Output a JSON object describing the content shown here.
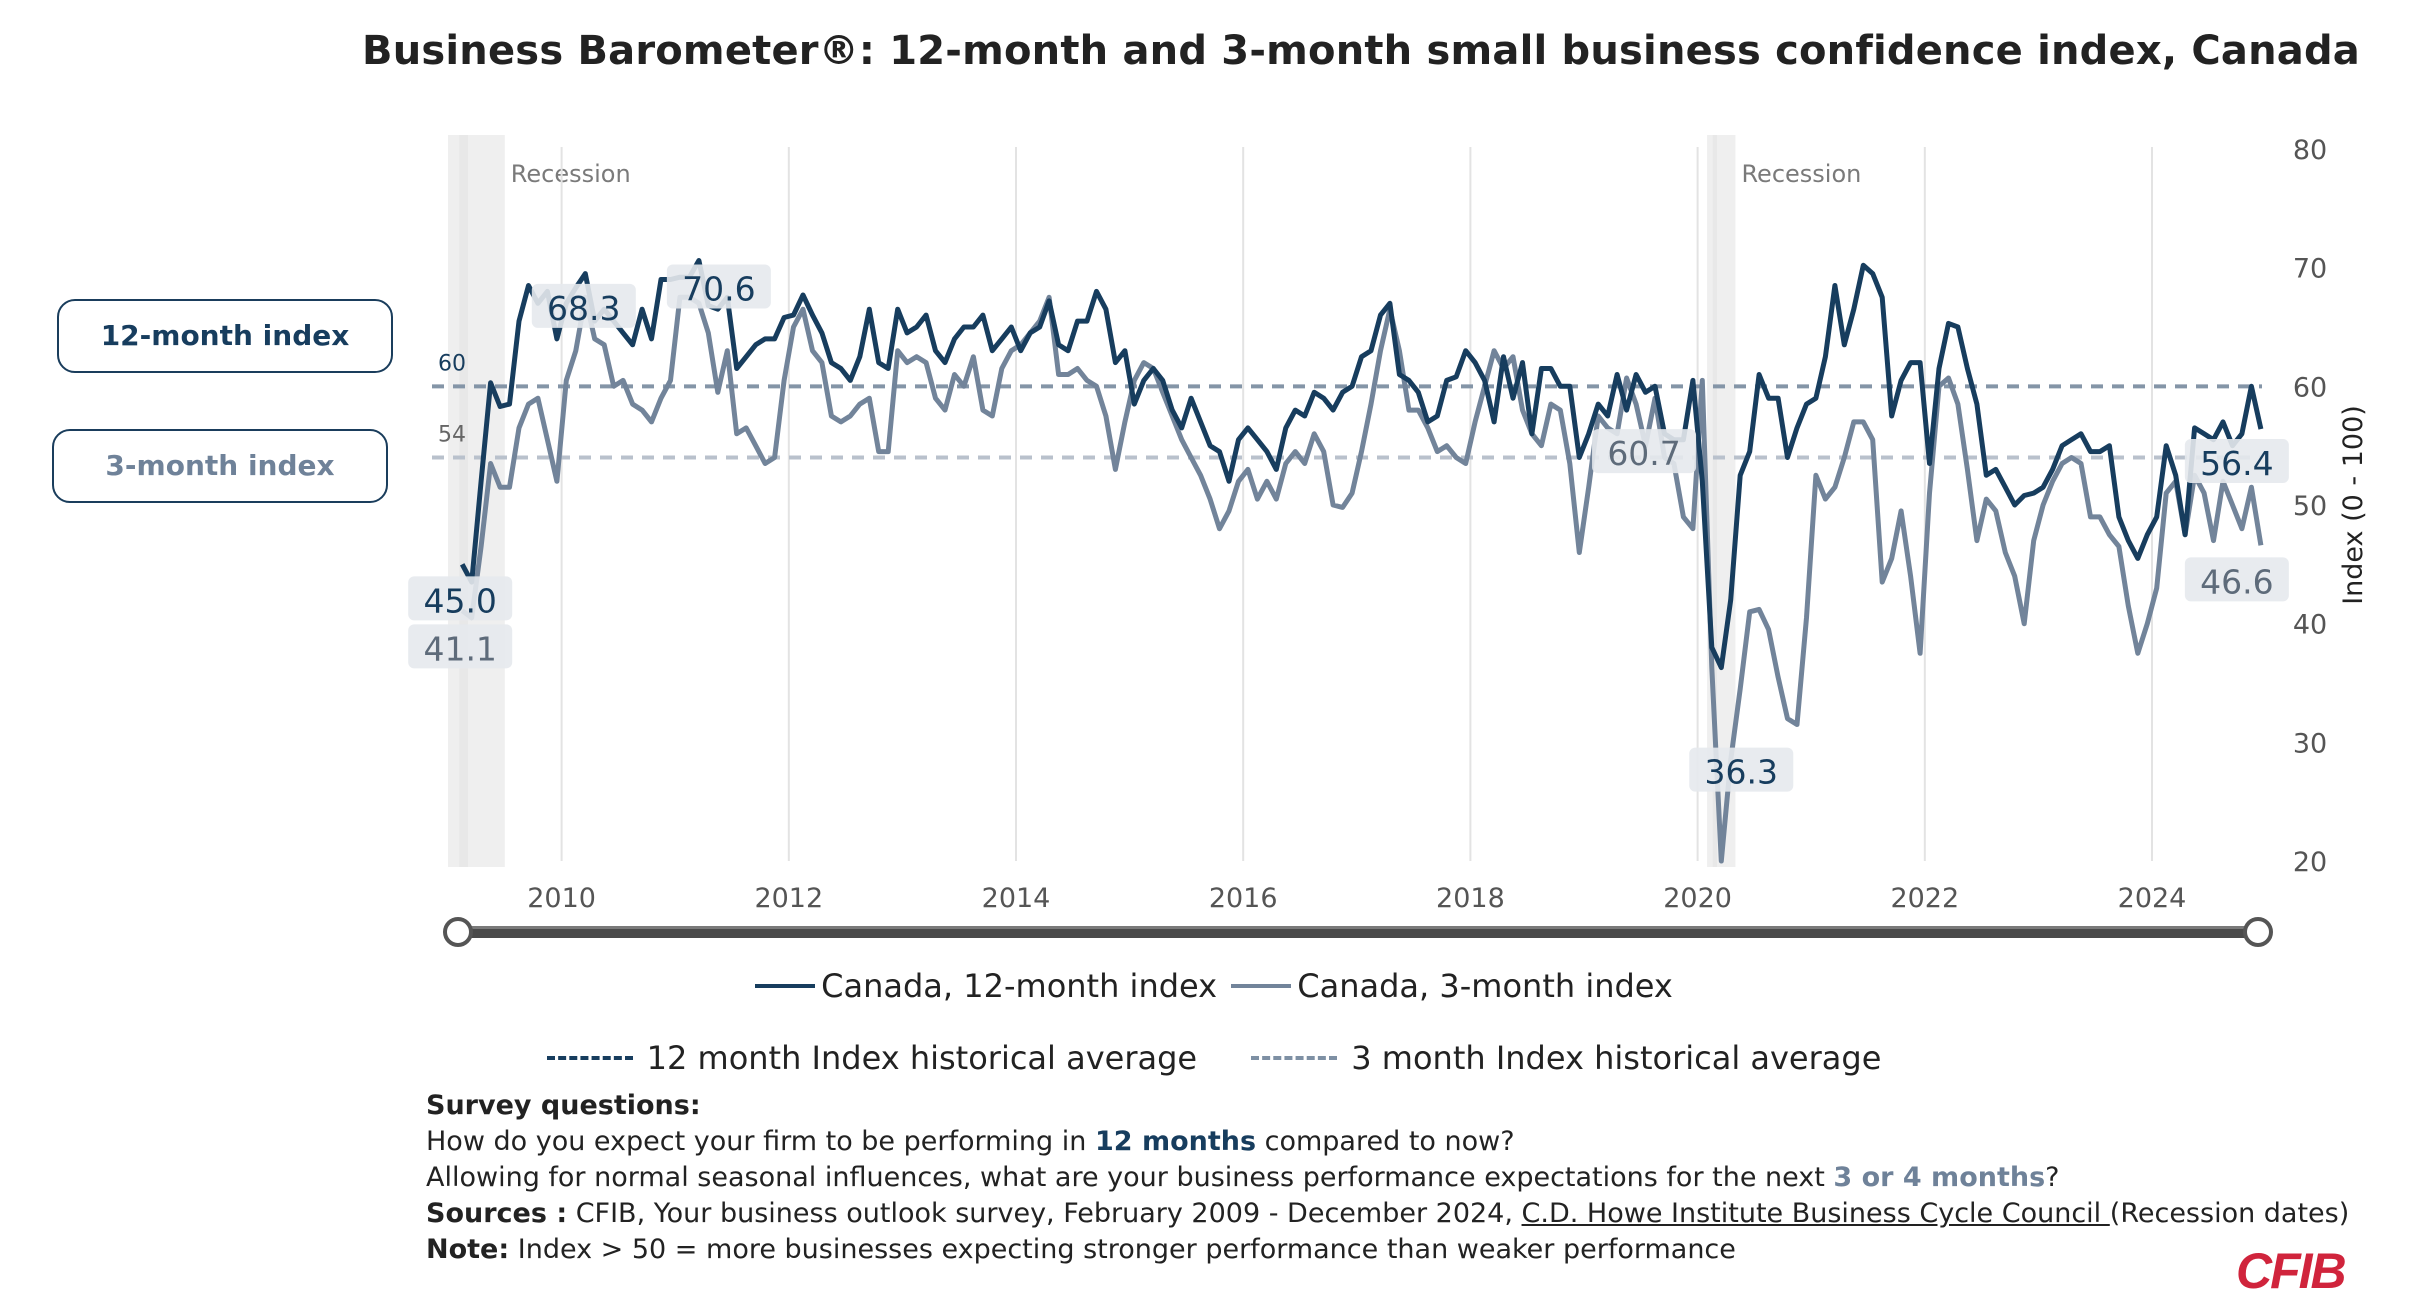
{
  "title": "Business Barometer®: 12-month and 3-month small business confidence index, Canada",
  "toggles": {
    "twelve_month": "12-month index",
    "three_month": "3-month index"
  },
  "colors": {
    "series_12": "#173d5e",
    "series_3": "#72849a",
    "avg_12": "#8495a7",
    "avg_3": "#b9c1cc",
    "recession": "#efefef",
    "label_bg": "#e6e9ed",
    "brand": "#d0243c"
  },
  "chart_data": {
    "type": "line",
    "title": "Business Barometer®: 12-month and 3-month small business confidence index, Canada",
    "xlabel": "",
    "ylabel": "Index (0 - 100)",
    "ylim": [
      20,
      80
    ],
    "yticks": [
      "20",
      "30",
      "40",
      "50",
      "60",
      "70",
      "80"
    ],
    "xticks": [
      "2010",
      "2012",
      "2014",
      "2016",
      "2018",
      "2020",
      "2022",
      "2024"
    ],
    "x_start": "2009-02",
    "x_end": "2024-12",
    "frequency": "monthly",
    "grid": "vertical",
    "legend_position": "bottom",
    "series": [
      {
        "name": "Canada, 12-month index",
        "values": [
          45.0,
          43.5,
          52.0,
          60.3,
          58.3,
          58.5,
          65.5,
          68.5,
          67.0,
          68.0,
          64.0,
          67.0,
          68.3,
          69.5,
          65.5,
          66.5,
          65.5,
          64.5,
          63.5,
          66.5,
          64.0,
          69.0,
          69.0,
          69.2,
          69.2,
          70.6,
          66.8,
          66.5,
          67.5,
          61.5,
          62.5,
          63.5,
          64.0,
          64.0,
          65.8,
          66.0,
          67.7,
          66.0,
          64.5,
          62.0,
          61.5,
          60.5,
          62.5,
          66.5,
          62.0,
          61.5,
          66.5,
          64.5,
          65.0,
          66.0,
          63.0,
          62.0,
          64.0,
          65.0,
          65.0,
          66.0,
          63.0,
          64.0,
          65.0,
          63.0,
          64.5,
          65.0,
          67.2,
          63.5,
          63.0,
          65.5,
          65.5,
          68.0,
          66.5,
          62.0,
          63.0,
          58.5,
          60.5,
          61.5,
          60.5,
          58.0,
          56.5,
          59.0,
          57.0,
          55.0,
          54.5,
          52.0,
          55.5,
          56.5,
          55.5,
          54.5,
          53.0,
          56.5,
          58.0,
          57.5,
          59.5,
          59.0,
          58.0,
          59.5,
          60.0,
          62.5,
          63.0,
          66.0,
          67.0,
          61.0,
          60.5,
          59.5,
          57.0,
          57.5,
          60.5,
          60.8,
          63.0,
          62.0,
          60.5,
          57.0,
          62.5,
          59.0,
          62.0,
          56.0,
          61.5,
          61.5,
          60.0,
          60.0,
          54.0,
          56.0,
          58.5,
          57.5,
          61.0,
          58.0,
          61.0,
          59.5,
          60.0,
          56.0,
          55.5,
          55.5,
          60.5,
          52.0,
          38.0,
          36.3,
          42.0,
          52.5,
          54.5,
          61.0,
          59.0,
          59.0,
          54.0,
          56.5,
          58.5,
          59.0,
          62.5,
          68.5,
          63.5,
          66.5,
          70.2,
          69.5,
          67.5,
          57.5,
          60.5,
          62.0,
          62.0,
          53.5,
          61.5,
          65.3,
          65.0,
          61.5,
          58.5,
          52.5,
          53.0,
          51.5,
          50.0,
          50.8,
          51.0,
          51.5,
          53.0,
          55.0,
          55.5,
          56.0,
          54.5,
          54.5,
          55.0,
          49.0,
          47.0,
          45.5,
          47.5,
          49.0,
          55.0,
          52.5,
          47.5,
          56.5,
          56.0,
          55.5,
          57.0,
          55.0,
          56.0,
          60.0,
          56.4
        ]
      },
      {
        "name": "Canada, 3-month index",
        "values": [
          41.1,
          40.5,
          46.5,
          53.5,
          51.5,
          51.5,
          56.5,
          58.5,
          59.0,
          55.5,
          52.0,
          60.5,
          63.0,
          67.5,
          64.0,
          63.5,
          60.0,
          60.5,
          58.5,
          58.0,
          57.0,
          59.0,
          60.5,
          67.5,
          67.5,
          67.0,
          64.5,
          59.5,
          63.0,
          56.0,
          56.5,
          55.0,
          53.5,
          54.0,
          60.5,
          65.0,
          66.5,
          63.0,
          62.0,
          57.5,
          57.0,
          57.5,
          58.5,
          59.0,
          54.5,
          54.5,
          63.0,
          62.0,
          62.5,
          62.0,
          59.0,
          58.0,
          61.0,
          60.0,
          62.5,
          58.0,
          57.5,
          61.5,
          63.0,
          63.5,
          64.5,
          65.5,
          67.5,
          61.0,
          61.0,
          61.5,
          60.5,
          60.0,
          57.5,
          53.0,
          57.0,
          60.5,
          62.0,
          61.5,
          59.5,
          57.5,
          55.5,
          54.0,
          52.5,
          50.5,
          48.0,
          49.5,
          52.0,
          53.0,
          50.5,
          52.0,
          50.5,
          53.5,
          54.5,
          53.5,
          56.0,
          54.5,
          50.0,
          49.8,
          51.0,
          54.5,
          58.5,
          63.0,
          66.5,
          63.0,
          58.0,
          58.0,
          56.5,
          54.5,
          55.0,
          54.0,
          53.5,
          57.0,
          60.0,
          63.0,
          61.5,
          62.5,
          58.0,
          56.0,
          55.0,
          58.5,
          58.0,
          53.5,
          46.0,
          51.5,
          57.5,
          56.5,
          56.0,
          60.7,
          58.5,
          55.0,
          59.0,
          54.0,
          53.5,
          49.0,
          48.0,
          60.5,
          36.3,
          19.5,
          28.5,
          34.5,
          41.0,
          41.2,
          39.5,
          35.5,
          32.0,
          31.5,
          40.5,
          52.5,
          50.5,
          51.5,
          54.0,
          57.0,
          57.0,
          55.5,
          43.5,
          45.5,
          49.5,
          44.0,
          37.5,
          51.0,
          60.0,
          60.7,
          58.5,
          53.0,
          47.0,
          50.5,
          49.5,
          46.0,
          44.0,
          40.0,
          47.0,
          50.0,
          52.0,
          53.5,
          54.0,
          53.5,
          49.0,
          49.0,
          47.5,
          46.5,
          41.5,
          37.5,
          40.0,
          43.0,
          51.0,
          52.0,
          47.5,
          52.5,
          51.0,
          47.0,
          52.0,
          50.0,
          48.0,
          51.5,
          46.6
        ]
      }
    ],
    "reference_lines": [
      {
        "name": "12 month Index historical average",
        "value": 60,
        "label": "60"
      },
      {
        "name": "3 month Index historical average",
        "value": 54,
        "label": "54"
      }
    ],
    "recessions": [
      {
        "label": "Recession",
        "start": "2009-01",
        "end": "2009-06"
      },
      {
        "label": "Recession",
        "start": "2020-02",
        "end": "2020-04"
      }
    ],
    "annotations": [
      {
        "series": 0,
        "index": 0,
        "text": "45.0"
      },
      {
        "series": 1,
        "index": 0,
        "text": "41.1"
      },
      {
        "series": 0,
        "index": 12,
        "text": "68.3"
      },
      {
        "series": 0,
        "index": 25,
        "text": "70.6"
      },
      {
        "series": 1,
        "index": 124,
        "text": "60.7"
      },
      {
        "series": 0,
        "index": 133,
        "text": "36.3"
      },
      {
        "series": 0,
        "index": 190,
        "text": "56.4"
      },
      {
        "series": 1,
        "index": 190,
        "text": "46.6"
      }
    ]
  },
  "legend": {
    "series_12": "Canada, 12-month index",
    "series_3": "Canada, 3-month index",
    "avg_12": "12 month Index historical average",
    "avg_3": "3 month Index historical average"
  },
  "notes": {
    "survey_heading": "Survey questions:",
    "q1_before": "How do you expect your firm to be performing in ",
    "q1_highlight": "12 months",
    "q1_after": " compared to now?",
    "q2_before": "Allowing for normal seasonal influences, what are your business performance expectations for the next ",
    "q2_highlight": "3 or 4 months",
    "q2_after": "?",
    "sources_label": "Sources :",
    "sources_text": " CFIB, Your business outlook survey, February 2009 - December 2024, ",
    "sources_link": "C.D. Howe Institute Business Cycle Council ",
    "sources_after": "(Recession dates)",
    "note_label": "Note:",
    "note_text": " Index > 50 = more businesses expecting stronger performance than weaker performance"
  },
  "logo": "CFIB"
}
